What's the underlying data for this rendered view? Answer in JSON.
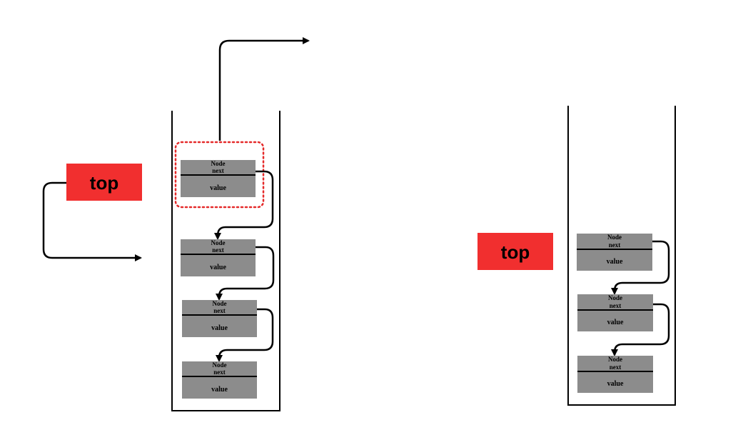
{
  "left_diagram": {
    "top_label": "top",
    "nodes": [
      {
        "title": "Node",
        "next_label": "next",
        "value_label": "value"
      },
      {
        "title": "Node",
        "next_label": "next",
        "value_label": "value"
      },
      {
        "title": "Node",
        "next_label": "next",
        "value_label": "value"
      },
      {
        "title": "Node",
        "next_label": "next",
        "value_label": "value"
      }
    ]
  },
  "right_diagram": {
    "top_label": "top",
    "nodes": [
      {
        "title": "Node",
        "next_label": "next",
        "value_label": "value"
      },
      {
        "title": "Node",
        "next_label": "next",
        "value_label": "value"
      },
      {
        "title": "Node",
        "next_label": "next",
        "value_label": "value"
      }
    ]
  },
  "colors": {
    "top_box": "#f12f2f",
    "node_fill": "#8c8c8c",
    "highlight": "#e52b2b"
  }
}
